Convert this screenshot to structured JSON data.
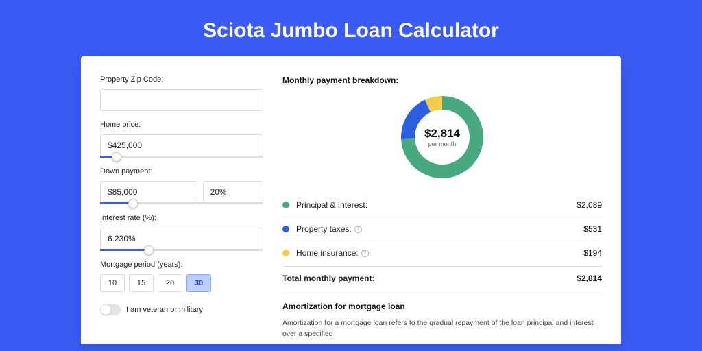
{
  "page": {
    "title": "Sciota Jumbo Loan Calculator",
    "bg_color": "#3a5cf5"
  },
  "form": {
    "zip": {
      "label": "Property Zip Code:",
      "value": ""
    },
    "home_price": {
      "label": "Home price:",
      "value": "$425,000",
      "slider_pct": 10
    },
    "down_payment": {
      "label": "Down payment:",
      "value": "$85,000",
      "pct": "20%",
      "slider_pct": 20
    },
    "interest_rate": {
      "label": "Interest rate (%):",
      "value": "6.230%",
      "slider_pct": 30
    },
    "period": {
      "label": "Mortgage period (years):",
      "options": [
        "10",
        "15",
        "20",
        "30"
      ],
      "selected": "30"
    },
    "veteran": {
      "label": "I am veteran or military",
      "on": false
    }
  },
  "breakdown": {
    "title": "Monthly payment breakdown:",
    "center_amount": "$2,814",
    "center_sub": "per month",
    "donut": {
      "size": 128,
      "thickness": 20,
      "slices": [
        {
          "label": "Principal & Interest:",
          "value": "$2,089",
          "color": "#48a880",
          "pct": 74.2,
          "info": false
        },
        {
          "label": "Property taxes:",
          "value": "$531",
          "color": "#2c5fe0",
          "pct": 18.9,
          "info": true
        },
        {
          "label": "Home insurance:",
          "value": "$194",
          "color": "#f3cc4e",
          "pct": 6.9,
          "info": true
        }
      ]
    },
    "total": {
      "label": "Total monthly payment:",
      "value": "$2,814"
    }
  },
  "amortization": {
    "title": "Amortization for mortgage loan",
    "text": "Amortization for a mortgage loan refers to the gradual repayment of the loan principal and interest over a specified"
  }
}
